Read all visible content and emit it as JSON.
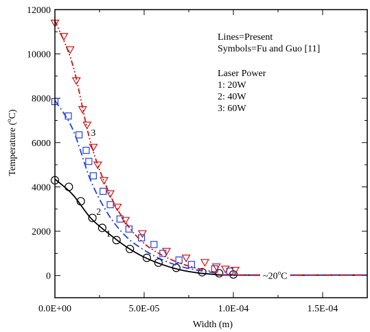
{
  "chart_data": {
    "type": "line",
    "xlabel": "Width (m)",
    "ylabel_prefix": "Temperature (",
    "ylabel_sup": "o",
    "ylabel_suffix": "C)",
    "xlim": [
      0,
      0.000175
    ],
    "ylim": [
      -1000,
      12000
    ],
    "x_ticks": [
      {
        "value": 0,
        "label": "0.0E+00"
      },
      {
        "value": 5e-05,
        "label": "5.0E-05"
      },
      {
        "value": 0.0001,
        "label": "1.0E-04"
      },
      {
        "value": 0.00015,
        "label": "1.5E-04"
      }
    ],
    "x_minor_ticks": [
      2.5e-05,
      7.5e-05,
      0.000125
    ],
    "y_ticks": [
      {
        "value": 0,
        "label": "0"
      },
      {
        "value": 2000,
        "label": "2000"
      },
      {
        "value": 4000,
        "label": "4000"
      },
      {
        "value": 6000,
        "label": "6000"
      },
      {
        "value": 8000,
        "label": "8000"
      },
      {
        "value": 10000,
        "label": "10000"
      },
      {
        "value": 12000,
        "label": "12000"
      }
    ],
    "y_minor_ticks": [
      -1000,
      1000,
      3000,
      5000,
      7000,
      9000,
      11000
    ],
    "legend": {
      "line1": "Lines=Present",
      "line2": "Symbols=Fu and Guo [11]",
      "heading": "Laser Power",
      "entries": [
        "1: 20W",
        "2: 40W",
        "3: 60W"
      ]
    },
    "annotation": {
      "prefix": "~20",
      "sup": "o",
      "suffix": "C",
      "x": 0.000115,
      "y": 0
    },
    "series": [
      {
        "id": "1",
        "label": "1",
        "label_at": [
          3e-05,
          1750
        ],
        "color": "#000000",
        "dash": "",
        "marker": "circle",
        "line": {
          "x": [
            0,
            1e-05,
            2e-05,
            3e-05,
            4e-05,
            5e-05,
            6e-05,
            7e-05,
            8e-05,
            9e-05,
            0.0001,
            0.000175
          ],
          "y": [
            4350,
            3650,
            2600,
            1900,
            1300,
            830,
            500,
            260,
            120,
            50,
            20,
            20
          ]
        },
        "symbols": {
          "x": [
            0,
            7.8e-06,
            1.45e-05,
            2.1e-05,
            2.65e-05,
            3.45e-05,
            4.2e-05,
            5.15e-05,
            5.8e-05,
            6.8e-05,
            8.25e-05,
            9.2e-05,
            0.0001
          ],
          "y": [
            4300,
            4000,
            3350,
            2600,
            2150,
            1600,
            1200,
            800,
            580,
            350,
            150,
            100,
            50
          ]
        }
      },
      {
        "id": "2",
        "label": "2",
        "label_at": [
          2.45e-05,
          2750
        ],
        "color": "#1f3fe0",
        "dash": "10 4 2 4",
        "marker": "square",
        "line": {
          "x": [
            0,
            1e-05,
            2e-05,
            3e-05,
            4e-05,
            5e-05,
            6e-05,
            7e-05,
            8e-05,
            9e-05,
            0.0001,
            0.000175
          ],
          "y": [
            7900,
            6600,
            4300,
            2750,
            1750,
            1150,
            720,
            420,
            240,
            120,
            20,
            20
          ]
        },
        "symbols": {
          "x": [
            0,
            7.5e-06,
            1.35e-05,
            1.75e-05,
            1.9e-05,
            2.15e-05,
            2.7e-05,
            3.1e-05,
            3.65e-05,
            4.15e-05,
            4.85e-05,
            5.55e-05,
            6.05e-05,
            6.95e-05,
            7.65e-05,
            8.95e-05,
            9.8e-05
          ],
          "y": [
            7850,
            7200,
            6350,
            5650,
            5150,
            4500,
            3800,
            3200,
            2550,
            2100,
            1700,
            1400,
            1000,
            700,
            500,
            300,
            200
          ]
        }
      },
      {
        "id": "3",
        "label": "3",
        "label_at": [
          2.15e-05,
          6300
        ],
        "color": "#d01010",
        "dash": "8 3 2 3 2 3",
        "marker": "triangle-down",
        "line": {
          "x": [
            0,
            1e-05,
            2e-05,
            3e-05,
            4e-05,
            5e-05,
            6e-05,
            7e-05,
            8e-05,
            9e-05,
            0.0001,
            0.000175
          ],
          "y": [
            11500,
            9500,
            6000,
            3800,
            2350,
            1450,
            920,
            560,
            320,
            150,
            20,
            20
          ]
        },
        "symbols": {
          "x": [
            0,
            5e-06,
            8.5e-06,
            1.2e-05,
            1.55e-05,
            1.8e-05,
            2.15e-05,
            2.4e-05,
            2.75e-05,
            3.1e-05,
            3.5e-05,
            3.95e-05,
            4.9e-05,
            6.25e-05,
            7.35e-05,
            8.4e-05,
            9.05e-05,
            9.55e-05,
            0.000101
          ],
          "y": [
            11400,
            10800,
            10200,
            8800,
            7500,
            6800,
            5800,
            5000,
            4300,
            3700,
            3100,
            2500,
            1900,
            1100,
            800,
            600,
            400,
            300,
            250
          ]
        }
      }
    ]
  }
}
